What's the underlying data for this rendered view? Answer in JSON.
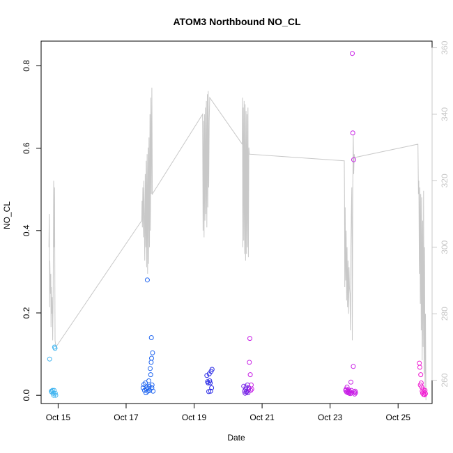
{
  "chart_data": {
    "type": "scatter",
    "title": "ATOM3 Northbound NO_CL",
    "xlabel": "Date",
    "ylabel": "NO_CL",
    "x_ticks": [
      "Oct 15",
      "Oct 17",
      "Oct 19",
      "Oct 21",
      "Oct 23",
      "Oct 25"
    ],
    "y_ticks": [
      "0.0",
      "0.2",
      "0.4",
      "0.6",
      "0.8"
    ],
    "y2_ticks": [
      "260",
      "280",
      "300",
      "320",
      "340",
      "360"
    ],
    "xlim": [
      "2021-10-14T12:00",
      "2021-10-26T00:00"
    ],
    "ylim": [
      -0.02,
      0.86
    ],
    "y2lim": [
      253,
      362
    ],
    "grid": false,
    "colors": {
      "secondary_line": "#c8c8c8",
      "secondary_axis": "#c8c8c8",
      "point_palette": [
        "#3fb4f0",
        "#1e64f0",
        "#2828e6",
        "#7828e6",
        "#c81ee6",
        "#f01ed2"
      ]
    },
    "groups": [
      {
        "day": "2021-10-14",
        "color": "#3fb4f0",
        "points": [
          [
            "14T18:00",
            0.088
          ],
          [
            "14T19:10",
            0.01
          ],
          [
            "14T19:30",
            0.008
          ],
          [
            "14T20:00",
            0.012
          ],
          [
            "14T20:30",
            0.005
          ],
          [
            "14T20:50",
            0.0
          ],
          [
            "14T21:10",
            0.012
          ],
          [
            "14T21:30",
            0.117
          ],
          [
            "14T21:50",
            0.114
          ],
          [
            "14T22:20",
            0.0
          ],
          [
            "14T22:00",
            0.005
          ]
        ]
      },
      {
        "day": "2021-10-17",
        "color": "#1e64f0",
        "points": [
          [
            "17T12:00",
            0.018
          ],
          [
            "17T12:30",
            0.026
          ],
          [
            "17T13:00",
            0.012
          ],
          [
            "17T13:40",
            0.03
          ],
          [
            "17T14:00",
            0.006
          ],
          [
            "17T14:20",
            0.015
          ],
          [
            "17T14:40",
            0.02
          ],
          [
            "17T15:00",
            0.28
          ],
          [
            "17T15:20",
            0.01
          ],
          [
            "17T15:40",
            0.017
          ],
          [
            "17T16:00",
            0.035
          ],
          [
            "17T16:20",
            0.022
          ],
          [
            "17T16:40",
            0.012
          ],
          [
            "17T17:00",
            0.065
          ],
          [
            "17T17:20",
            0.05
          ],
          [
            "17T17:40",
            0.08
          ],
          [
            "17T17:50",
            0.14
          ],
          [
            "17T18:00",
            0.09
          ],
          [
            "17T18:10",
            0.018
          ],
          [
            "17T18:20",
            0.025
          ],
          [
            "17T18:40",
            0.103
          ],
          [
            "17T19:00",
            0.01
          ]
        ]
      },
      {
        "day": "2021-10-19",
        "color": "#2828e6",
        "points": [
          [
            "19T09:00",
            0.048
          ],
          [
            "19T09:30",
            0.033
          ],
          [
            "19T10:00",
            0.03
          ],
          [
            "19T10:20",
            0.009
          ],
          [
            "19T10:40",
            0.052
          ],
          [
            "19T11:00",
            0.035
          ],
          [
            "19T11:20",
            0.03
          ],
          [
            "19T11:40",
            0.01
          ],
          [
            "19T12:00",
            0.058
          ],
          [
            "19T12:20",
            0.018
          ],
          [
            "19T12:40",
            0.063
          ]
        ]
      },
      {
        "day": "2021-10-20",
        "color": "#7828e6",
        "points": [
          [
            "20T11:00",
            0.022
          ],
          [
            "20T11:30",
            0.01
          ],
          [
            "20T12:00",
            0.005
          ],
          [
            "20T12:20",
            0.015
          ],
          [
            "20T12:40",
            0.02
          ],
          [
            "20T13:00",
            0.008
          ],
          [
            "20T13:20",
            0.01
          ],
          [
            "20T13:40",
            0.025
          ],
          [
            "20T14:00",
            0.006
          ],
          [
            "20T14:20",
            0.013
          ],
          [
            "20T14:40",
            0.018
          ]
        ]
      },
      {
        "day": "2021-10-20b",
        "color": "#c81ee6",
        "points": [
          [
            "20T15:00",
            0.08
          ],
          [
            "20T15:20",
            0.138
          ],
          [
            "20T15:40",
            0.05
          ],
          [
            "20T16:00",
            0.012
          ],
          [
            "20T16:20",
            0.025
          ],
          [
            "20T16:40",
            0.015
          ]
        ]
      },
      {
        "day": "2021-10-23",
        "color": "#c81ee6",
        "points": [
          [
            "23T11:00",
            0.012
          ],
          [
            "23T11:20",
            0.015
          ],
          [
            "23T11:40",
            0.008
          ],
          [
            "23T12:00",
            0.02
          ],
          [
            "23T12:20",
            0.01
          ],
          [
            "23T12:40",
            0.006
          ],
          [
            "23T13:00",
            0.013
          ],
          [
            "23T13:20",
            0.005
          ],
          [
            "23T13:40",
            0.01
          ],
          [
            "23T14:00",
            0.008
          ],
          [
            "23T14:20",
            0.004
          ],
          [
            "23T14:40",
            0.032
          ],
          [
            "23T15:00",
            0.012
          ],
          [
            "23T15:20",
            0.006
          ],
          [
            "23T15:40",
            0.83
          ],
          [
            "23T16:00",
            0.637
          ],
          [
            "23T16:20",
            0.07
          ],
          [
            "23T16:40",
            0.572
          ],
          [
            "23T17:00",
            0.008
          ],
          [
            "23T17:20",
            0.003
          ],
          [
            "23T17:40",
            0.01
          ],
          [
            "23T18:00",
            0.006
          ]
        ]
      },
      {
        "day": "2021-10-25",
        "color": "#f01ed2",
        "points": [
          [
            "25T15:00",
            0.078
          ],
          [
            "25T15:20",
            0.068
          ],
          [
            "25T15:40",
            0.025
          ],
          [
            "25T16:00",
            0.05
          ],
          [
            "25T16:20",
            0.03
          ],
          [
            "25T16:40",
            0.02
          ],
          [
            "25T17:00",
            0.01
          ],
          [
            "25T17:20",
            0.005
          ],
          [
            "25T17:40",
            0.015
          ],
          [
            "25T18:00",
            0.002
          ],
          [
            "25T18:20",
            0.008
          ],
          [
            "25T18:40",
            0.001
          ],
          [
            "25T19:00",
            0.012
          ],
          [
            "25T19:20",
            0.004
          ]
        ]
      }
    ],
    "secondary_series": [
      [
        "14T17:30",
        300
      ],
      [
        "14T17:45",
        310
      ],
      [
        "14T18:00",
        282
      ],
      [
        "14T18:10",
        296
      ],
      [
        "14T18:20",
        291
      ],
      [
        "14T18:35",
        286
      ],
      [
        "14T18:50",
        292
      ],
      [
        "14T19:00",
        276
      ],
      [
        "14T19:15",
        288
      ],
      [
        "14T19:30",
        280
      ],
      [
        "14T19:50",
        285
      ],
      [
        "14T20:10",
        272
      ],
      [
        "14T20:30",
        287
      ],
      [
        "14T20:50",
        320
      ],
      [
        "14T21:10",
        300
      ],
      [
        "14T21:30",
        318
      ],
      [
        "14T21:50",
        272
      ],
      [
        "14T22:30",
        270
      ],
      [
        "17T11:00",
        308
      ],
      [
        "17T11:15",
        314
      ],
      [
        "17T11:30",
        306
      ],
      [
        "17T11:50",
        318
      ],
      [
        "17T12:10",
        303
      ],
      [
        "17T12:30",
        320
      ],
      [
        "17T12:50",
        310
      ],
      [
        "17T13:10",
        296
      ],
      [
        "17T13:30",
        322
      ],
      [
        "17T13:50",
        300
      ],
      [
        "17T14:10",
        326
      ],
      [
        "17T14:30",
        294
      ],
      [
        "17T14:50",
        328
      ],
      [
        "17T15:10",
        292
      ],
      [
        "17T15:30",
        330
      ],
      [
        "17T15:50",
        295
      ],
      [
        "17T16:10",
        333
      ],
      [
        "17T16:30",
        300
      ],
      [
        "17T16:50",
        340
      ],
      [
        "17T17:10",
        305
      ],
      [
        "17T17:30",
        345
      ],
      [
        "17T17:50",
        316
      ],
      [
        "17T18:10",
        348
      ],
      [
        "17T18:30",
        316
      ],
      [
        "19T06:00",
        340
      ],
      [
        "19T06:20",
        305
      ],
      [
        "19T06:40",
        338
      ],
      [
        "19T07:00",
        303
      ],
      [
        "19T07:20",
        340
      ],
      [
        "19T07:40",
        308
      ],
      [
        "19T08:00",
        342
      ],
      [
        "19T08:20",
        310
      ],
      [
        "19T08:40",
        344
      ],
      [
        "19T09:00",
        306
      ],
      [
        "19T09:20",
        346
      ],
      [
        "19T09:40",
        312
      ],
      [
        "19T10:00",
        347
      ],
      [
        "19T10:20",
        318
      ],
      [
        "19T10:40",
        338
      ],
      [
        "19T11:00",
        345
      ],
      [
        "20T10:00",
        331
      ],
      [
        "20T10:10",
        345
      ],
      [
        "20T10:20",
        300
      ],
      [
        "20T10:40",
        342
      ],
      [
        "20T11:00",
        302
      ],
      [
        "20T11:20",
        344
      ],
      [
        "20T11:40",
        298
      ],
      [
        "20T12:00",
        343
      ],
      [
        "20T12:20",
        296
      ],
      [
        "20T12:40",
        341
      ],
      [
        "20T13:00",
        298
      ],
      [
        "20T13:20",
        340
      ],
      [
        "20T13:40",
        300
      ],
      [
        "20T14:00",
        342
      ],
      [
        "20T14:20",
        297
      ],
      [
        "20T14:40",
        330
      ],
      [
        "20T15:00",
        328
      ],
      [
        "23T10:00",
        326
      ],
      [
        "23T10:10",
        316
      ],
      [
        "23T10:20",
        288
      ],
      [
        "23T10:40",
        312
      ],
      [
        "23T11:00",
        290
      ],
      [
        "23T11:20",
        305
      ],
      [
        "23T11:40",
        284
      ],
      [
        "23T12:00",
        300
      ],
      [
        "23T12:20",
        282
      ],
      [
        "23T12:40",
        296
      ],
      [
        "23T13:00",
        280
      ],
      [
        "23T13:20",
        294
      ],
      [
        "23T13:40",
        288
      ],
      [
        "23T14:00",
        286
      ],
      [
        "23T14:20",
        275
      ],
      [
        "23T14:40",
        300
      ],
      [
        "23T15:00",
        310
      ],
      [
        "23T15:20",
        318
      ],
      [
        "23T15:40",
        272
      ],
      [
        "23T16:00",
        318
      ],
      [
        "23T16:20",
        334
      ],
      [
        "23T16:40",
        322
      ],
      [
        "23T17:00",
        328
      ],
      [
        "23T17:20",
        327
      ],
      [
        "25T14:00",
        331
      ],
      [
        "25T14:20",
        316
      ],
      [
        "25T14:40",
        320
      ],
      [
        "25T15:00",
        292
      ],
      [
        "25T15:20",
        318
      ],
      [
        "25T15:40",
        283
      ],
      [
        "25T16:00",
        316
      ],
      [
        "25T16:20",
        275
      ],
      [
        "25T16:40",
        315
      ],
      [
        "25T17:00",
        266
      ],
      [
        "25T17:20",
        308
      ],
      [
        "25T17:40",
        270
      ],
      [
        "25T18:00",
        317
      ],
      [
        "25T18:20",
        262
      ],
      [
        "25T18:40",
        300
      ],
      [
        "25T19:00",
        258
      ],
      [
        "25T19:20",
        280
      ],
      [
        "25T19:40",
        254
      ]
    ]
  }
}
